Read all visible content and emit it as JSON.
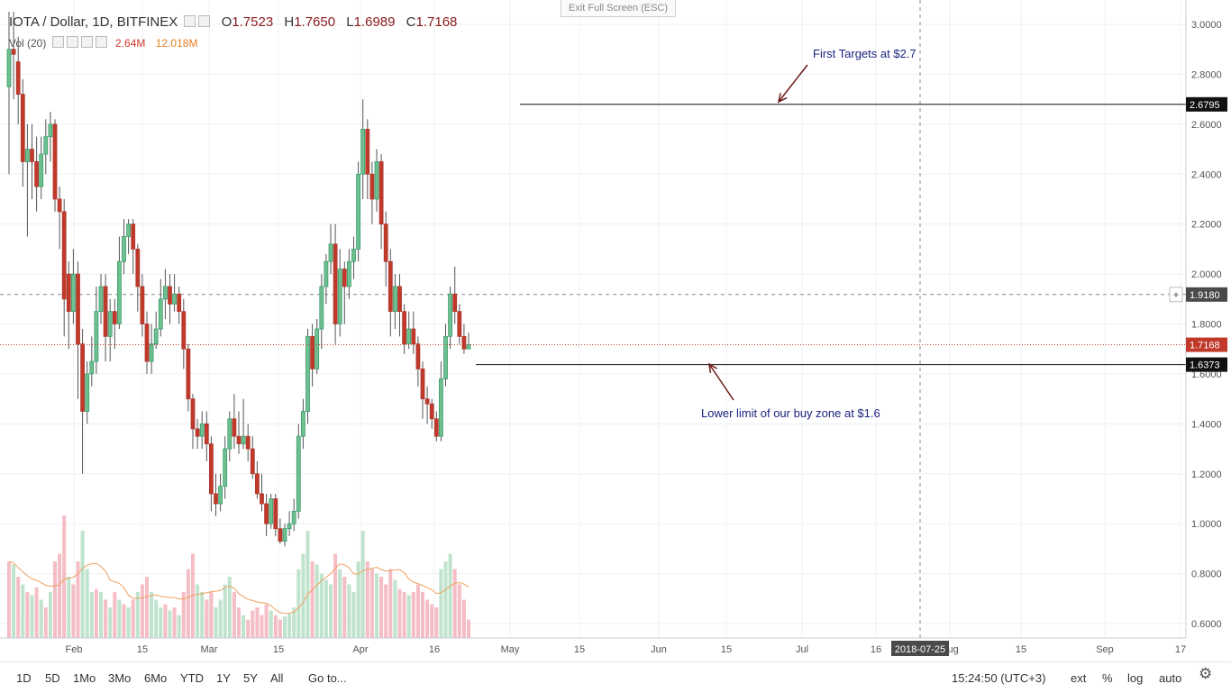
{
  "header": {
    "symbol": "IOTA / Dollar, 1D, BITFINEX",
    "open_label": "O",
    "open": "1.7523",
    "high_label": "H",
    "high": "1.7650",
    "low_label": "L",
    "low": "1.6989",
    "close_label": "C",
    "close": "1.7168"
  },
  "volume_indicator": {
    "label": "Vol (20)",
    "value": "2.64M",
    "ma": "12.018M"
  },
  "exit_fullscreen": "Exit Full Screen (ESC)",
  "toolbar": {
    "timeframes": [
      "1D",
      "5D",
      "1Mo",
      "3Mo",
      "6Mo",
      "YTD",
      "1Y",
      "5Y",
      "All"
    ],
    "goto": "Go to...",
    "clock": "15:24:50 (UTC+3)",
    "ext": "ext",
    "pct": "%",
    "log": "log",
    "auto": "auto"
  },
  "chart_data": {
    "type": "candlestick",
    "y_axis": {
      "ticks": [
        "3.0000",
        "2.8000",
        "2.6000",
        "2.4000",
        "2.2000",
        "2.0000",
        "1.8000",
        "1.6000",
        "1.4000",
        "1.2000",
        "1.0000",
        "0.8000",
        "0.6000"
      ],
      "min": 0.55,
      "max": 3.05
    },
    "x_axis": {
      "labels": [
        "Feb",
        "15",
        "Mar",
        "15",
        "Apr",
        "16",
        "May",
        "15",
        "Jun",
        "15",
        "Jul",
        "16",
        "Aug",
        "15",
        "Sep",
        "17"
      ],
      "cursor_label": "2018-07-25"
    },
    "price_labels": {
      "resistance": "2.6795",
      "crosshair": "1.9180",
      "last": "1.7168",
      "support": "1.6373"
    },
    "annotations": [
      {
        "text": "First Targets at $2.7"
      },
      {
        "text": "Lower limit of our buy zone at $1.6"
      }
    ],
    "candles": [
      [
        2.75,
        2.9,
        3.05,
        2.4
      ],
      [
        2.9,
        2.88,
        3.05,
        2.7
      ],
      [
        2.85,
        2.72,
        2.95,
        2.6
      ],
      [
        2.72,
        2.45,
        2.78,
        2.35
      ],
      [
        2.45,
        2.5,
        2.6,
        2.15
      ],
      [
        2.5,
        2.45,
        2.6,
        2.3
      ],
      [
        2.45,
        2.35,
        2.55,
        2.25
      ],
      [
        2.35,
        2.48,
        2.55,
        2.3
      ],
      [
        2.48,
        2.55,
        2.62,
        2.4
      ],
      [
        2.55,
        2.6,
        2.65,
        2.45
      ],
      [
        2.6,
        2.3,
        2.62,
        2.25
      ],
      [
        2.3,
        2.25,
        2.35,
        2.1
      ],
      [
        2.25,
        1.9,
        2.3,
        1.75
      ],
      [
        2.0,
        1.85,
        2.05,
        1.7
      ],
      [
        1.85,
        2.0,
        2.1,
        1.8
      ],
      [
        2.0,
        1.72,
        2.05,
        1.5
      ],
      [
        1.72,
        1.45,
        1.78,
        1.2
      ],
      [
        1.45,
        1.6,
        1.65,
        1.4
      ],
      [
        1.6,
        1.65,
        1.75,
        1.55
      ],
      [
        1.65,
        1.85,
        1.95,
        1.6
      ],
      [
        1.85,
        1.95,
        2.0,
        1.8
      ],
      [
        1.95,
        1.75,
        2.0,
        1.65
      ],
      [
        1.75,
        1.85,
        1.9,
        1.65
      ],
      [
        1.85,
        1.8,
        1.9,
        1.7
      ],
      [
        1.8,
        2.05,
        2.15,
        1.78
      ],
      [
        2.05,
        2.15,
        2.22,
        2.0
      ],
      [
        2.15,
        2.2,
        2.22,
        2.08
      ],
      [
        2.2,
        2.1,
        2.22,
        2.0
      ],
      [
        2.1,
        1.95,
        2.12,
        1.85
      ],
      [
        1.95,
        1.8,
        2.0,
        1.75
      ],
      [
        1.8,
        1.65,
        1.85,
        1.6
      ],
      [
        1.65,
        1.72,
        1.8,
        1.6
      ],
      [
        1.72,
        1.78,
        1.85,
        1.7
      ],
      [
        1.78,
        1.9,
        1.98,
        1.75
      ],
      [
        1.9,
        1.95,
        2.02,
        1.82
      ],
      [
        1.95,
        1.88,
        2.0,
        1.8
      ],
      [
        1.88,
        1.92,
        2.0,
        1.85
      ],
      [
        1.92,
        1.85,
        1.95,
        1.8
      ],
      [
        1.85,
        1.7,
        1.9,
        1.62
      ],
      [
        1.7,
        1.5,
        1.72,
        1.45
      ],
      [
        1.5,
        1.38,
        1.52,
        1.3
      ],
      [
        1.38,
        1.35,
        1.42,
        1.3
      ],
      [
        1.35,
        1.4,
        1.45,
        1.3
      ],
      [
        1.4,
        1.32,
        1.45,
        1.25
      ],
      [
        1.32,
        1.12,
        1.35,
        1.05
      ],
      [
        1.12,
        1.08,
        1.2,
        1.03
      ],
      [
        1.08,
        1.15,
        1.2,
        1.05
      ],
      [
        1.15,
        1.3,
        1.35,
        1.1
      ],
      [
        1.3,
        1.42,
        1.45,
        1.25
      ],
      [
        1.42,
        1.35,
        1.52,
        1.3
      ],
      [
        1.35,
        1.32,
        1.45,
        1.28
      ],
      [
        1.32,
        1.35,
        1.5,
        1.3
      ],
      [
        1.35,
        1.3,
        1.4,
        1.25
      ],
      [
        1.3,
        1.2,
        1.35,
        1.18
      ],
      [
        1.2,
        1.12,
        1.25,
        1.1
      ],
      [
        1.12,
        1.08,
        1.2,
        1.05
      ],
      [
        1.08,
        1.0,
        1.12,
        0.95
      ],
      [
        1.0,
        1.1,
        1.12,
        0.98
      ],
      [
        1.1,
        0.98,
        1.12,
        0.95
      ],
      [
        0.98,
        0.93,
        1.02,
        0.92
      ],
      [
        0.93,
        0.98,
        1.0,
        0.91
      ],
      [
        0.98,
        1.0,
        1.05,
        0.95
      ],
      [
        1.0,
        1.05,
        1.1,
        0.97
      ],
      [
        1.05,
        1.35,
        1.4,
        1.02
      ],
      [
        1.35,
        1.45,
        1.5,
        1.3
      ],
      [
        1.45,
        1.75,
        1.78,
        1.4
      ],
      [
        1.75,
        1.62,
        1.8,
        1.55
      ],
      [
        1.62,
        1.78,
        1.82,
        1.6
      ],
      [
        1.78,
        1.95,
        2.0,
        1.7
      ],
      [
        1.95,
        2.05,
        2.08,
        1.88
      ],
      [
        2.05,
        2.12,
        2.2,
        2.0
      ],
      [
        2.12,
        1.8,
        2.2,
        1.72
      ],
      [
        1.8,
        2.02,
        2.1,
        1.75
      ],
      [
        2.02,
        1.95,
        2.05,
        1.8
      ],
      [
        1.95,
        2.05,
        2.1,
        1.9
      ],
      [
        2.05,
        2.1,
        2.15,
        1.98
      ],
      [
        2.1,
        2.4,
        2.45,
        2.05
      ],
      [
        2.4,
        2.58,
        2.7,
        2.3
      ],
      [
        2.58,
        2.4,
        2.62,
        2.3
      ],
      [
        2.4,
        2.3,
        2.45,
        2.2
      ],
      [
        2.3,
        2.45,
        2.5,
        2.25
      ],
      [
        2.45,
        2.2,
        2.48,
        2.1
      ],
      [
        2.2,
        2.05,
        2.25,
        1.95
      ],
      [
        2.05,
        1.85,
        2.1,
        1.75
      ],
      [
        1.85,
        1.95,
        2.0,
        1.78
      ],
      [
        1.95,
        1.85,
        2.0,
        1.75
      ],
      [
        1.85,
        1.72,
        1.88,
        1.68
      ],
      [
        1.72,
        1.78,
        1.85,
        1.7
      ],
      [
        1.78,
        1.72,
        1.85,
        1.68
      ],
      [
        1.72,
        1.62,
        1.75,
        1.55
      ],
      [
        1.62,
        1.5,
        1.65,
        1.42
      ],
      [
        1.5,
        1.48,
        1.55,
        1.4
      ],
      [
        1.48,
        1.42,
        1.5,
        1.38
      ],
      [
        1.42,
        1.35,
        1.45,
        1.33
      ],
      [
        1.35,
        1.58,
        1.65,
        1.33
      ],
      [
        1.58,
        1.75,
        1.8,
        1.55
      ],
      [
        1.75,
        1.92,
        1.95,
        1.7
      ],
      [
        1.92,
        1.85,
        2.03,
        1.8
      ],
      [
        1.85,
        1.75,
        1.88,
        1.72
      ],
      [
        1.75,
        1.7,
        1.8,
        1.68
      ],
      [
        1.7,
        1.7168,
        1.765,
        1.6989
      ]
    ],
    "volumes": [
      [
        0.5,
        0
      ],
      [
        0.48,
        1
      ],
      [
        0.4,
        0
      ],
      [
        0.35,
        1
      ],
      [
        0.3,
        0
      ],
      [
        0.28,
        1
      ],
      [
        0.33,
        0
      ],
      [
        0.25,
        1
      ],
      [
        0.2,
        0
      ],
      [
        0.3,
        1
      ],
      [
        0.5,
        0
      ],
      [
        0.55,
        0
      ],
      [
        0.8,
        0
      ],
      [
        0.4,
        1
      ],
      [
        0.35,
        0
      ],
      [
        0.5,
        0
      ],
      [
        0.7,
        1
      ],
      [
        0.45,
        1
      ],
      [
        0.3,
        1
      ],
      [
        0.32,
        0
      ],
      [
        0.3,
        1
      ],
      [
        0.25,
        0
      ],
      [
        0.2,
        1
      ],
      [
        0.3,
        0
      ],
      [
        0.25,
        1
      ],
      [
        0.22,
        0
      ],
      [
        0.2,
        1
      ],
      [
        0.25,
        0
      ],
      [
        0.3,
        1
      ],
      [
        0.35,
        0
      ],
      [
        0.4,
        0
      ],
      [
        0.3,
        1
      ],
      [
        0.25,
        1
      ],
      [
        0.2,
        1
      ],
      [
        0.22,
        0
      ],
      [
        0.18,
        1
      ],
      [
        0.2,
        0
      ],
      [
        0.15,
        1
      ],
      [
        0.3,
        0
      ],
      [
        0.45,
        0
      ],
      [
        0.55,
        0
      ],
      [
        0.35,
        1
      ],
      [
        0.3,
        1
      ],
      [
        0.25,
        0
      ],
      [
        0.3,
        0
      ],
      [
        0.2,
        1
      ],
      [
        0.25,
        1
      ],
      [
        0.35,
        1
      ],
      [
        0.4,
        1
      ],
      [
        0.3,
        0
      ],
      [
        0.2,
        0
      ],
      [
        0.15,
        1
      ],
      [
        0.12,
        0
      ],
      [
        0.18,
        0
      ],
      [
        0.2,
        0
      ],
      [
        0.15,
        0
      ],
      [
        0.22,
        0
      ],
      [
        0.18,
        1
      ],
      [
        0.15,
        0
      ],
      [
        0.12,
        0
      ],
      [
        0.14,
        1
      ],
      [
        0.16,
        1
      ],
      [
        0.2,
        1
      ],
      [
        0.45,
        1
      ],
      [
        0.55,
        1
      ],
      [
        0.7,
        1
      ],
      [
        0.5,
        0
      ],
      [
        0.48,
        1
      ],
      [
        0.42,
        1
      ],
      [
        0.38,
        1
      ],
      [
        0.35,
        1
      ],
      [
        0.55,
        0
      ],
      [
        0.45,
        1
      ],
      [
        0.4,
        0
      ],
      [
        0.35,
        1
      ],
      [
        0.3,
        1
      ],
      [
        0.5,
        1
      ],
      [
        0.7,
        1
      ],
      [
        0.5,
        0
      ],
      [
        0.45,
        0
      ],
      [
        0.42,
        1
      ],
      [
        0.4,
        0
      ],
      [
        0.35,
        0
      ],
      [
        0.45,
        0
      ],
      [
        0.38,
        1
      ],
      [
        0.32,
        0
      ],
      [
        0.3,
        0
      ],
      [
        0.28,
        1
      ],
      [
        0.3,
        0
      ],
      [
        0.35,
        0
      ],
      [
        0.3,
        0
      ],
      [
        0.25,
        0
      ],
      [
        0.22,
        0
      ],
      [
        0.2,
        0
      ],
      [
        0.45,
        1
      ],
      [
        0.5,
        1
      ],
      [
        0.55,
        1
      ],
      [
        0.45,
        0
      ],
      [
        0.35,
        0
      ],
      [
        0.25,
        0
      ],
      [
        0.12,
        0
      ]
    ]
  }
}
